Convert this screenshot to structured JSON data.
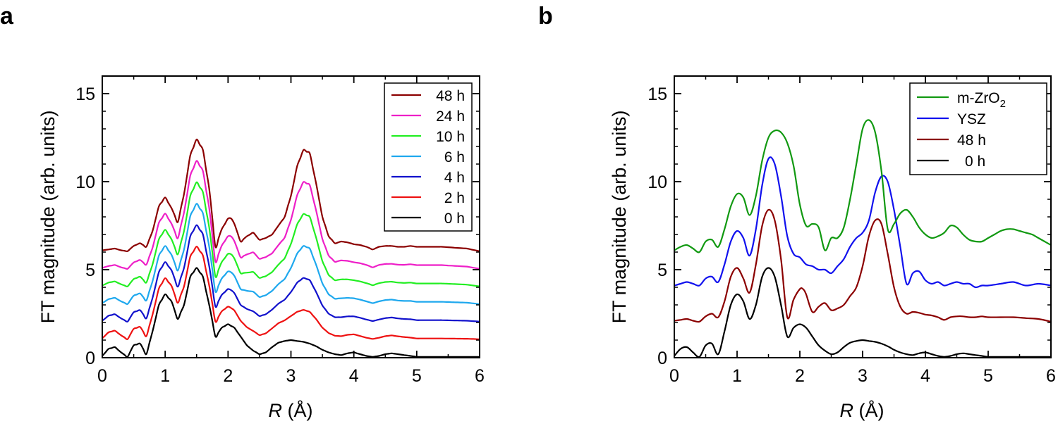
{
  "panels": {
    "a": {
      "label": "a"
    },
    "b": {
      "label": "b"
    }
  },
  "chart_data": [
    {
      "type": "line",
      "panel": "a",
      "title": "",
      "xlabel_italic": "R",
      "xlabel_unit": "(Å)",
      "ylabel": "FT magnitude (arb. units)",
      "xlim": [
        0,
        6
      ],
      "ylim": [
        0,
        16
      ],
      "xticks": [
        "0",
        "1",
        "2",
        "3",
        "4",
        "5",
        "6"
      ],
      "yticks": [
        "0",
        "5",
        "10",
        "15"
      ],
      "legend_position": "top-right",
      "series": [
        {
          "name": "48 h",
          "color": "#8b0000",
          "offset": 6,
          "display_order": 0
        },
        {
          "name": "24 h",
          "color": "#ee1fc8",
          "offset": 5,
          "display_order": 1
        },
        {
          "name": "10 h",
          "color": "#22ee22",
          "offset": 4,
          "display_order": 2
        },
        {
          "name": "6 h",
          "color": "#1ea8ee",
          "offset": 3,
          "display_order": 3
        },
        {
          "name": "4 h",
          "color": "#1111cc",
          "offset": 2,
          "display_order": 4
        },
        {
          "name": "2 h",
          "color": "#ee1111",
          "offset": 1,
          "display_order": 5
        },
        {
          "name": "0 h",
          "color": "#000000",
          "offset": 0,
          "display_order": 6
        }
      ],
      "profiles": {
        "base": {
          "x": [
            0,
            0.1,
            0.2,
            0.3,
            0.4,
            0.5,
            0.6,
            0.7,
            0.8,
            0.9,
            1.0,
            1.1,
            1.2,
            1.3,
            1.4,
            1.5,
            1.6,
            1.7,
            1.8,
            1.9,
            2.0,
            2.1,
            2.2,
            2.3,
            2.4,
            2.5,
            2.6,
            2.7,
            2.8,
            2.9,
            3.0,
            3.1,
            3.2,
            3.3,
            3.4,
            3.5,
            3.6,
            3.7,
            3.8,
            3.9,
            4.0,
            4.1,
            4.2,
            4.3,
            4.4,
            4.5,
            4.6,
            4.7,
            4.8,
            4.9,
            5.0,
            5.2,
            5.4,
            5.6,
            5.8,
            6.0
          ],
          "y": [
            0.1,
            0.5,
            0.6,
            0.3,
            0.05,
            0.7,
            0.8,
            0.2,
            1.5,
            3.0,
            3.6,
            3.2,
            2.2,
            3.0,
            4.6,
            5.1,
            4.6,
            3.0,
            1.2,
            1.7,
            1.9,
            1.7,
            1.2,
            0.7,
            0.4,
            0.2,
            0.3,
            0.6,
            0.85,
            0.95,
            1.0,
            0.95,
            0.9,
            0.8,
            0.65,
            0.45,
            0.3,
            0.2,
            0.15,
            0.25,
            0.3,
            0.2,
            0.1,
            0.05,
            0.1,
            0.2,
            0.25,
            0.2,
            0.15,
            0.1,
            0.05,
            0.05,
            0.05,
            0.05,
            0.05,
            0.05
          ]
        },
        "evolved": {
          "x": [
            0,
            0.1,
            0.2,
            0.3,
            0.4,
            0.5,
            0.6,
            0.7,
            0.8,
            0.9,
            1.0,
            1.1,
            1.2,
            1.3,
            1.4,
            1.5,
            1.6,
            1.7,
            1.8,
            1.9,
            2.0,
            2.05,
            2.1,
            2.2,
            2.3,
            2.4,
            2.5,
            2.6,
            2.7,
            2.8,
            2.9,
            3.0,
            3.1,
            3.2,
            3.3,
            3.4,
            3.5,
            3.6,
            3.7,
            3.8,
            3.9,
            4.0,
            4.1,
            4.2,
            4.3,
            4.4,
            4.5,
            4.6,
            4.7,
            4.8,
            4.9,
            5.0,
            5.2,
            5.4,
            5.6,
            5.8,
            6.0
          ],
          "y": [
            0.1,
            0.15,
            0.2,
            0.1,
            0.05,
            0.35,
            0.5,
            0.3,
            1.2,
            2.6,
            3.1,
            2.5,
            1.7,
            3.3,
            5.5,
            6.4,
            5.8,
            3.6,
            0.3,
            1.3,
            1.9,
            1.9,
            1.6,
            0.6,
            0.9,
            1.1,
            0.7,
            0.8,
            1.0,
            1.5,
            2.0,
            3.2,
            4.9,
            5.8,
            5.6,
            3.9,
            2.0,
            0.9,
            0.5,
            0.6,
            0.55,
            0.45,
            0.4,
            0.3,
            0.15,
            0.3,
            0.35,
            0.35,
            0.3,
            0.3,
            0.35,
            0.3,
            0.3,
            0.3,
            0.25,
            0.2,
            0.05
          ]
        }
      }
    },
    {
      "type": "line",
      "panel": "b",
      "title": "",
      "xlabel_italic": "R",
      "xlabel_unit": "(Å)",
      "ylabel": "FT magnitude (arb. units)",
      "xlim": [
        0,
        6
      ],
      "ylim": [
        0,
        16
      ],
      "xticks": [
        "0",
        "1",
        "2",
        "3",
        "4",
        "5",
        "6"
      ],
      "yticks": [
        "0",
        "5",
        "10",
        "15"
      ],
      "legend_position": "top-right",
      "series": [
        {
          "name": "m-ZrO",
          "subscript": "2",
          "color": "#119911",
          "x": [
            0,
            0.1,
            0.2,
            0.3,
            0.4,
            0.5,
            0.6,
            0.7,
            0.8,
            0.9,
            1.0,
            1.1,
            1.2,
            1.3,
            1.4,
            1.5,
            1.6,
            1.7,
            1.8,
            1.9,
            2.0,
            2.1,
            2.2,
            2.3,
            2.4,
            2.5,
            2.6,
            2.7,
            2.8,
            2.9,
            3.0,
            3.1,
            3.2,
            3.3,
            3.4,
            3.5,
            3.6,
            3.7,
            3.8,
            3.9,
            4.0,
            4.1,
            4.2,
            4.3,
            4.4,
            4.5,
            4.6,
            4.7,
            4.8,
            4.9,
            5.0,
            5.1,
            5.2,
            5.3,
            5.4,
            5.5,
            5.6,
            5.7,
            5.8,
            5.9,
            6.0
          ],
          "y": [
            6.1,
            6.3,
            6.4,
            6.2,
            6.0,
            6.6,
            6.7,
            6.3,
            7.3,
            8.6,
            9.3,
            9.1,
            8.1,
            9.2,
            11.2,
            12.5,
            12.9,
            12.8,
            12.2,
            10.9,
            8.7,
            7.5,
            7.6,
            7.4,
            6.1,
            6.8,
            6.8,
            7.4,
            9.0,
            11.0,
            13.0,
            13.5,
            12.8,
            10.6,
            7.3,
            7.6,
            8.2,
            8.4,
            8.0,
            7.4,
            7.0,
            6.8,
            6.9,
            7.1,
            7.5,
            7.4,
            7.0,
            6.7,
            6.6,
            6.6,
            6.8,
            7.0,
            7.2,
            7.3,
            7.3,
            7.2,
            7.1,
            7.0,
            6.8,
            6.6,
            6.4
          ]
        },
        {
          "name": "YSZ",
          "color": "#1111ee",
          "x": [
            0,
            0.1,
            0.2,
            0.3,
            0.4,
            0.5,
            0.6,
            0.7,
            0.8,
            0.9,
            1.0,
            1.1,
            1.2,
            1.3,
            1.4,
            1.5,
            1.6,
            1.7,
            1.8,
            1.9,
            2.0,
            2.1,
            2.2,
            2.3,
            2.4,
            2.5,
            2.6,
            2.7,
            2.8,
            2.9,
            3.0,
            3.1,
            3.2,
            3.3,
            3.4,
            3.5,
            3.6,
            3.7,
            3.8,
            3.9,
            4.0,
            4.1,
            4.2,
            4.3,
            4.4,
            4.5,
            4.6,
            4.7,
            4.8,
            4.9,
            5.0,
            5.2,
            5.4,
            5.6,
            5.8,
            6.0
          ],
          "y": [
            4.1,
            4.2,
            4.3,
            4.2,
            4.1,
            4.5,
            4.6,
            4.3,
            5.3,
            6.6,
            7.2,
            6.8,
            5.8,
            7.3,
            9.8,
            11.3,
            11.0,
            9.2,
            6.9,
            5.9,
            5.7,
            5.3,
            5.2,
            5.0,
            5.0,
            4.8,
            5.2,
            5.6,
            6.3,
            6.8,
            7.1,
            7.8,
            9.4,
            10.3,
            10.0,
            8.4,
            6.3,
            4.2,
            4.8,
            4.9,
            4.4,
            4.2,
            4.3,
            4.1,
            4.2,
            4.3,
            4.2,
            4.2,
            4.0,
            4.1,
            4.1,
            4.2,
            4.3,
            4.1,
            4.2,
            4.1
          ]
        },
        {
          "name": "48 h",
          "color": "#8b0000",
          "x": [
            0,
            0.1,
            0.2,
            0.3,
            0.4,
            0.5,
            0.6,
            0.7,
            0.8,
            0.9,
            1.0,
            1.1,
            1.2,
            1.3,
            1.4,
            1.5,
            1.6,
            1.7,
            1.8,
            1.9,
            2.0,
            2.05,
            2.1,
            2.2,
            2.3,
            2.4,
            2.5,
            2.6,
            2.7,
            2.8,
            2.9,
            3.0,
            3.1,
            3.2,
            3.3,
            3.4,
            3.5,
            3.6,
            3.7,
            3.8,
            3.9,
            4.0,
            4.1,
            4.2,
            4.3,
            4.4,
            4.5,
            4.6,
            4.7,
            4.8,
            4.9,
            5.0,
            5.2,
            5.4,
            5.6,
            5.8,
            6.0
          ],
          "y": [
            2.1,
            2.15,
            2.2,
            2.1,
            2.05,
            2.35,
            2.5,
            2.3,
            3.2,
            4.6,
            5.1,
            4.5,
            3.7,
            5.3,
            7.5,
            8.4,
            7.8,
            5.6,
            2.3,
            3.3,
            3.9,
            3.9,
            3.6,
            2.6,
            2.9,
            3.1,
            2.7,
            2.8,
            3.0,
            3.5,
            4.0,
            5.2,
            6.9,
            7.8,
            7.6,
            5.9,
            4.0,
            2.9,
            2.5,
            2.6,
            2.55,
            2.45,
            2.4,
            2.3,
            2.15,
            2.3,
            2.35,
            2.35,
            2.3,
            2.3,
            2.35,
            2.3,
            2.3,
            2.3,
            2.25,
            2.2,
            2.05
          ]
        },
        {
          "name": "0 h",
          "color": "#000000",
          "x": [
            0,
            0.1,
            0.2,
            0.3,
            0.4,
            0.5,
            0.6,
            0.7,
            0.8,
            0.9,
            1.0,
            1.1,
            1.2,
            1.3,
            1.4,
            1.5,
            1.6,
            1.7,
            1.8,
            1.9,
            2.0,
            2.1,
            2.2,
            2.3,
            2.4,
            2.5,
            2.6,
            2.7,
            2.8,
            2.9,
            3.0,
            3.1,
            3.2,
            3.3,
            3.4,
            3.5,
            3.6,
            3.7,
            3.8,
            3.9,
            4.0,
            4.1,
            4.2,
            4.3,
            4.4,
            4.5,
            4.6,
            4.7,
            4.8,
            4.9,
            5.0,
            5.2,
            5.4,
            5.6,
            5.8,
            6.0
          ],
          "y": [
            0.1,
            0.5,
            0.6,
            0.3,
            0.05,
            0.7,
            0.8,
            0.2,
            1.5,
            3.0,
            3.6,
            3.2,
            2.2,
            3.0,
            4.6,
            5.1,
            4.6,
            3.0,
            1.2,
            1.7,
            1.9,
            1.7,
            1.2,
            0.7,
            0.4,
            0.2,
            0.3,
            0.6,
            0.85,
            0.95,
            1.0,
            0.95,
            0.9,
            0.8,
            0.65,
            0.45,
            0.3,
            0.2,
            0.15,
            0.25,
            0.3,
            0.2,
            0.1,
            0.05,
            0.1,
            0.2,
            0.25,
            0.2,
            0.15,
            0.1,
            0.05,
            0.05,
            0.05,
            0.05,
            0.05,
            0.05
          ]
        }
      ]
    }
  ]
}
